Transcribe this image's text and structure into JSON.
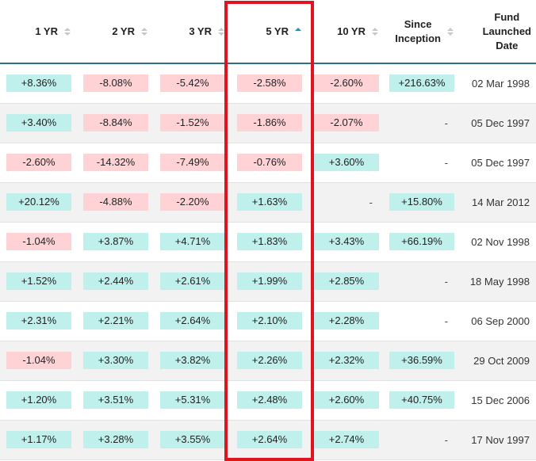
{
  "headers": [
    {
      "label": "1 YR",
      "sort": "none"
    },
    {
      "label": "2 YR",
      "sort": "none"
    },
    {
      "label": "3 YR",
      "sort": "none"
    },
    {
      "label": "5 YR",
      "sort": "asc"
    },
    {
      "label": "10 YR",
      "sort": "none"
    },
    {
      "label": "Since\nInception",
      "sort": "none"
    },
    {
      "label": "Fund\nLaunched\nDate",
      "sort": null
    }
  ],
  "rows": [
    [
      "+8.36%",
      "-8.08%",
      "-5.42%",
      "-2.58%",
      "-2.60%",
      "+216.63%",
      "02 Mar 1998"
    ],
    [
      "+3.40%",
      "-8.84%",
      "-1.52%",
      "-1.86%",
      "-2.07%",
      "-",
      "05 Dec 1997"
    ],
    [
      "-2.60%",
      "-14.32%",
      "-7.49%",
      "-0.76%",
      "+3.60%",
      "-",
      "05 Dec 1997"
    ],
    [
      "+20.12%",
      "-4.88%",
      "-2.20%",
      "+1.63%",
      "-",
      "+15.80%",
      "14 Mar 2012"
    ],
    [
      "-1.04%",
      "+3.87%",
      "+4.71%",
      "+1.83%",
      "+3.43%",
      "+66.19%",
      "02 Nov 1998"
    ],
    [
      "+1.52%",
      "+2.44%",
      "+2.61%",
      "+1.99%",
      "+2.85%",
      "-",
      "18 May 1998"
    ],
    [
      "+2.31%",
      "+2.21%",
      "+2.64%",
      "+2.10%",
      "+2.28%",
      "-",
      "06 Sep 2000"
    ],
    [
      "-1.04%",
      "+3.30%",
      "+3.82%",
      "+2.26%",
      "+2.32%",
      "+36.59%",
      "29 Oct 2009"
    ],
    [
      "+1.20%",
      "+3.51%",
      "+5.31%",
      "+2.48%",
      "+2.60%",
      "+40.75%",
      "15 Dec 2006"
    ],
    [
      "+1.17%",
      "+3.28%",
      "+3.55%",
      "+2.64%",
      "+2.74%",
      "-",
      "17 Nov 1997"
    ]
  ],
  "colors": {
    "positive_bg": "#bff0ec",
    "negative_bg": "#ffd3d6",
    "highlight_border": "#e0141e",
    "header_rule": "#2b6f8a",
    "active_sort": "#2b8aa8"
  }
}
